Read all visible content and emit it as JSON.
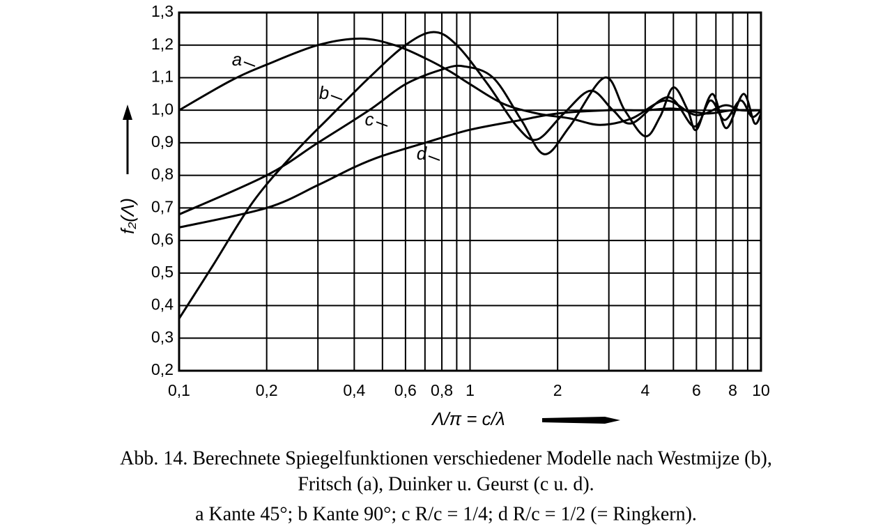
{
  "chart_data": {
    "type": "line",
    "xlabel": "Λ/π = c/λ",
    "ylabel": "f₂(Λ)",
    "caption": [
      "Abb. 14. Berechnete Spiegelfunktionen verschiedener Modelle nach Westmijze (b),",
      "Fritsch (a), Duinker u. Geurst (c u. d).",
      "a Kante 45°; b Kante 90°; c R/c = 1/4; d R/c = 1/2 (= Ringkern)."
    ],
    "xscale": "log",
    "grid": true,
    "xlim": [
      0.1,
      10
    ],
    "ylim": [
      0.2,
      1.3
    ],
    "xticks": [
      {
        "value": 0.1,
        "label": "0,1"
      },
      {
        "value": 0.2,
        "label": "0,2"
      },
      {
        "value": 0.4,
        "label": "0,4"
      },
      {
        "value": 0.6,
        "label": "0,6"
      },
      {
        "value": 0.8,
        "label": "0,8"
      },
      1,
      2,
      4,
      6,
      8,
      10
    ],
    "xminor": [
      0.3,
      0.5,
      0.7,
      0.9,
      3,
      5,
      7,
      9
    ],
    "yticks": [
      {
        "value": 0.2,
        "label": "0,2"
      },
      {
        "value": 0.3,
        "label": "0,3"
      },
      {
        "value": 0.4,
        "label": "0,4"
      },
      {
        "value": 0.5,
        "label": "0,5"
      },
      {
        "value": 0.6,
        "label": "0,6"
      },
      {
        "value": 0.7,
        "label": "0,7"
      },
      {
        "value": 0.8,
        "label": "0,8"
      },
      {
        "value": 0.9,
        "label": "0,9"
      },
      {
        "value": 1.0,
        "label": "1,0"
      },
      {
        "value": 1.1,
        "label": "1,1"
      },
      {
        "value": 1.2,
        "label": "1,2"
      },
      {
        "value": 1.3,
        "label": "1,3"
      }
    ],
    "series": [
      {
        "name": "a",
        "color": "#000000",
        "x": [
          0.1,
          0.15,
          0.2,
          0.3,
          0.42,
          0.55,
          0.7,
          0.85,
          1.0,
          1.3,
          1.7,
          2.2,
          2.8,
          3.6,
          4.7,
          6.0,
          7.5,
          8.5,
          10
        ],
        "values": [
          1.0,
          1.09,
          1.14,
          1.2,
          1.22,
          1.2,
          1.16,
          1.12,
          1.08,
          1.02,
          0.99,
          0.975,
          0.955,
          0.975,
          1.03,
          0.985,
          1.015,
          1.0,
          1.0
        ]
      },
      {
        "name": "b",
        "color": "#000000",
        "x": [
          0.1,
          0.13,
          0.18,
          0.25,
          0.33,
          0.45,
          0.6,
          0.75,
          0.9,
          1.15,
          1.45,
          1.7,
          2.1,
          2.6,
          3.1,
          3.6,
          4.8,
          5.9,
          6.7,
          7.5,
          8.5,
          9.3,
          10
        ],
        "values": [
          0.36,
          0.52,
          0.72,
          0.87,
          0.98,
          1.1,
          1.2,
          1.24,
          1.2,
          1.08,
          0.95,
          0.91,
          0.99,
          1.06,
          1.0,
          0.96,
          1.04,
          0.95,
          1.03,
          0.97,
          1.03,
          0.98,
          1.0
        ]
      },
      {
        "name": "c",
        "color": "#000000",
        "x": [
          0.1,
          0.2,
          0.3,
          0.45,
          0.6,
          0.8,
          0.95,
          1.2,
          1.5,
          1.8,
          2.2,
          2.9,
          3.4,
          4.0,
          4.5,
          5.0,
          5.6,
          6.0,
          6.8,
          7.6,
          8.7,
          9.5,
          10
        ],
        "values": [
          0.68,
          0.8,
          0.9,
          1.0,
          1.08,
          1.125,
          1.135,
          1.1,
          0.97,
          0.865,
          0.95,
          1.1,
          1.0,
          0.92,
          0.98,
          1.07,
          1.0,
          0.94,
          1.05,
          0.945,
          1.05,
          0.96,
          0.99
        ]
      },
      {
        "name": "d",
        "color": "#000000",
        "x": [
          0.1,
          0.2,
          0.3,
          0.4,
          0.5,
          0.7,
          1.0,
          1.5,
          2.0,
          3.0,
          4.0,
          5.0,
          6.5,
          8.0,
          10
        ],
        "values": [
          0.64,
          0.7,
          0.77,
          0.825,
          0.86,
          0.9,
          0.94,
          0.97,
          0.99,
          1.0,
          1.0,
          1.005,
          0.99,
          1.0,
          1.0
        ]
      }
    ]
  }
}
